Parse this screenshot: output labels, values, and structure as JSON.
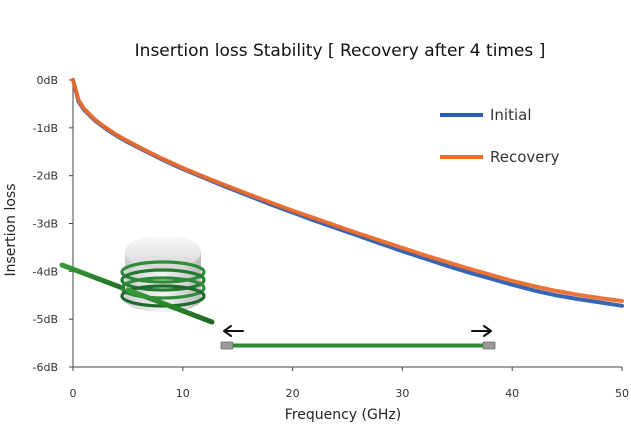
{
  "chart_data": {
    "type": "line",
    "title": "Insertion loss Stability [ Recovery after 4 times ]",
    "xlabel": "Frequency (GHz)",
    "ylabel": "Insertion loss",
    "xlim": [
      0,
      50
    ],
    "ylim": [
      -6,
      0
    ],
    "x_ticks": [
      0,
      10,
      20,
      30,
      40,
      50
    ],
    "x_tick_labels": [
      "0",
      "10",
      "20",
      "30",
      "40",
      "50"
    ],
    "y_ticks": [
      0,
      -1,
      -2,
      -3,
      -4,
      -5,
      -6
    ],
    "y_tick_labels": [
      "0dB",
      "-1dB",
      "-2dB",
      "-3dB",
      "-4dB",
      "-5dB",
      "-6dB"
    ],
    "grid": false,
    "legend_position": "top-right",
    "x": [
      0,
      0.5,
      1,
      2,
      3,
      4,
      5,
      6,
      8,
      10,
      12,
      14,
      16,
      18,
      20,
      22,
      24,
      26,
      28,
      30,
      32,
      34,
      36,
      38,
      40,
      42,
      44,
      46,
      48,
      50
    ],
    "series": [
      {
        "name": "Initial",
        "color": "#2a5db0",
        "values": [
          0,
          -0.45,
          -0.62,
          -0.85,
          -1.02,
          -1.17,
          -1.3,
          -1.42,
          -1.65,
          -1.86,
          -2.05,
          -2.24,
          -2.42,
          -2.6,
          -2.77,
          -2.94,
          -3.1,
          -3.26,
          -3.42,
          -3.58,
          -3.73,
          -3.88,
          -4.02,
          -4.15,
          -4.28,
          -4.4,
          -4.5,
          -4.58,
          -4.65,
          -4.72
        ]
      },
      {
        "name": "Recovery",
        "color": "#ec6a2a",
        "values": [
          0,
          -0.42,
          -0.6,
          -0.83,
          -1.0,
          -1.15,
          -1.28,
          -1.4,
          -1.63,
          -1.84,
          -2.03,
          -2.21,
          -2.39,
          -2.56,
          -2.73,
          -2.89,
          -3.05,
          -3.21,
          -3.36,
          -3.51,
          -3.66,
          -3.8,
          -3.94,
          -4.07,
          -4.2,
          -4.31,
          -4.41,
          -4.49,
          -4.56,
          -4.62
        ]
      }
    ]
  }
}
